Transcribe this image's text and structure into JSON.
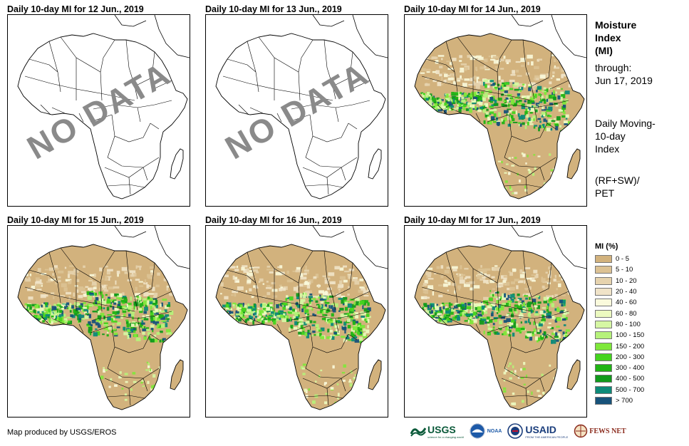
{
  "panels": [
    {
      "title": "Daily 10-day MI for 12 Jun., 2019",
      "nodata": true,
      "overlay": "NO DATA"
    },
    {
      "title": "Daily 10-day MI for 13 Jun., 2019",
      "nodata": true,
      "overlay": "NO DATA"
    },
    {
      "title": "Daily 10-day MI for 14 Jun., 2019",
      "nodata": false,
      "overlay": ""
    },
    {
      "title": "Daily 10-day MI for 15 Jun., 2019",
      "nodata": false,
      "overlay": ""
    },
    {
      "title": "Daily 10-day MI for 16 Jun., 2019",
      "nodata": false,
      "overlay": ""
    },
    {
      "title": "Daily 10-day MI for 17 Jun., 2019",
      "nodata": false,
      "overlay": ""
    }
  ],
  "sidebar": {
    "title_line1": "Moisture",
    "title_line2": "Index",
    "title_line3": "(MI)",
    "through_label": "through:",
    "through_date": "Jun 17, 2019",
    "desc_line1": "Daily Moving-",
    "desc_line2": "10-day",
    "desc_line3": "Index",
    "formula_line1": "(RF+SW)/",
    "formula_line2": "PET"
  },
  "legend": {
    "title": "MI (%)",
    "items": [
      {
        "label": "0 - 5",
        "color": "#d2b27d"
      },
      {
        "label": "5 - 10",
        "color": "#dcc294"
      },
      {
        "label": "10 - 20",
        "color": "#e6d3ae"
      },
      {
        "label": "20 - 40",
        "color": "#f0e3c8"
      },
      {
        "label": "40 - 60",
        "color": "#fafadc"
      },
      {
        "label": "60 - 80",
        "color": "#ecfac0"
      },
      {
        "label": "80 - 100",
        "color": "#d6f7a3"
      },
      {
        "label": "100 - 150",
        "color": "#b6f27a"
      },
      {
        "label": "150 - 200",
        "color": "#7ee83a"
      },
      {
        "label": "200 - 300",
        "color": "#45d41f"
      },
      {
        "label": "300 - 400",
        "color": "#20b414"
      },
      {
        "label": "400 - 500",
        "color": "#119a1b"
      },
      {
        "label": "500 - 700",
        "color": "#0d8a78"
      },
      {
        "label": "> 700",
        "color": "#17527a"
      }
    ]
  },
  "footer": {
    "credit": "Map produced by USGS/EROS",
    "logos": [
      "USGS",
      "NOAA",
      "USAID",
      "FEWS NET"
    ],
    "usgs_tagline": "science for a changing world",
    "usaid_tagline": "FROM THE AMERICAN PEOPLE"
  }
}
